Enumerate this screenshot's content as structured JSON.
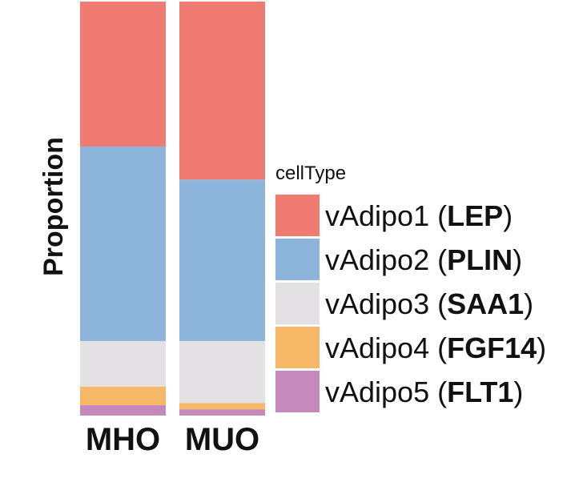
{
  "chart_data": {
    "type": "bar",
    "stacked": true,
    "normalized": true,
    "categories": [
      "MHO",
      "MUO"
    ],
    "ylabel": "Proportion",
    "ylim": [
      0,
      1
    ],
    "legend": {
      "title": "cellType",
      "placement": "right"
    },
    "series": [
      {
        "name": "vAdipo1",
        "gene": "LEP",
        "color": "#F07B72",
        "values": [
          0.35,
          0.43
        ]
      },
      {
        "name": "vAdipo2",
        "gene": "PLIN",
        "color": "#8DB5DB",
        "values": [
          0.47,
          0.39
        ]
      },
      {
        "name": "vAdipo3",
        "gene": "SAA1",
        "color": "#E3E1E4",
        "values": [
          0.11,
          0.15
        ]
      },
      {
        "name": "vAdipo4",
        "gene": "FGF14",
        "color": "#F6B866",
        "values": [
          0.045,
          0.015
        ]
      },
      {
        "name": "vAdipo5",
        "gene": "FLT1",
        "color": "#C589BE",
        "values": [
          0.025,
          0.015
        ]
      }
    ]
  }
}
